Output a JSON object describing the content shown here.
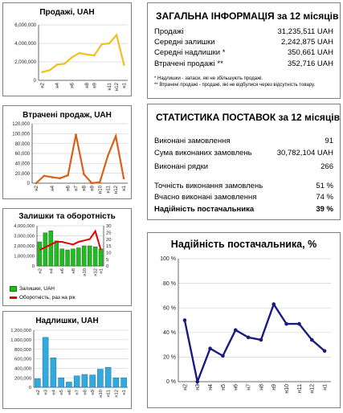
{
  "charts": {
    "sales": {
      "title": "Продажі, UAH"
    },
    "lost": {
      "title": "Втрачені продаж, UAH"
    },
    "stock": {
      "title": "Залишки та оборотність",
      "legend_stock": "Залишки, UAH",
      "legend_turnover": "Оборотність, раз на рік"
    },
    "surplus": {
      "title": "Надлишки, UAH"
    },
    "reliability": {
      "title": "Надійність постачальника, %"
    }
  },
  "info": {
    "title": "ЗАГАЛЬНА ІНФОРМАЦІЯ за 12 місяців",
    "rows": [
      {
        "label": "Продажі",
        "value": "31,235,511 UAH"
      },
      {
        "label": "Середні залишки",
        "value": "2,242,875 UAH"
      },
      {
        "label": "Середні надлишки *",
        "value": "350,661 UAH"
      },
      {
        "label": "Втрачені продажі **",
        "value": "352,716 UAH"
      }
    ],
    "note1": "* Надлишки - запаси, які не збільшують продажі.",
    "note2": "** Втрачені продажі - продажі, які не відбулися через відсутність товару."
  },
  "stats": {
    "title": "СТАТИСТИКА ПОСТАВОК за 12 місяців",
    "rows": [
      {
        "label": "Виконані замовлення",
        "value": "91"
      },
      {
        "label": "Сума виконаних замовлень",
        "value": "30,782,104 UAH"
      },
      {
        "label": "Виконані рядки",
        "value": "266"
      },
      {
        "label": "Точність виконання замовлень",
        "value": "51 %"
      },
      {
        "label": "Вчасно виконані замовлення",
        "value": "74 %"
      },
      {
        "label": "Надійність постачальника",
        "value": "39 %"
      }
    ]
  },
  "colors": {
    "sales": "#f0c020",
    "lost": "#d86018",
    "stock_bar": "#22bb22",
    "turnover": "#e00000",
    "surplus": "#33aadd",
    "reliability": "#1a1a80"
  },
  "chart_data": [
    {
      "type": "line",
      "title": "Продажі, UAH",
      "x": [
        "н2",
        "н3",
        "н4",
        "н5",
        "н6",
        "н7",
        "н8",
        "н9",
        "н10",
        "н11",
        "н12",
        "н1"
      ],
      "xlabels": [
        "н2",
        "",
        "н4",
        "",
        "н6",
        "",
        "н8",
        "н9",
        "",
        "н11",
        "н12",
        "н1"
      ],
      "values": [
        900000,
        1100000,
        1700000,
        1800000,
        2500000,
        2950000,
        2800000,
        2700000,
        3900000,
        4000000,
        4900000,
        1700000
      ],
      "yticks": [
        "0",
        "2,000,000",
        "4,000,000",
        "6,000,000"
      ],
      "ylim": [
        0,
        6000000
      ]
    },
    {
      "type": "line",
      "title": "Втрачені продаж, UAH",
      "x": [
        "н2",
        "н3",
        "н4",
        "н5",
        "н6",
        "н7",
        "н8",
        "н9",
        "н10",
        "н11",
        "н12",
        "н1"
      ],
      "xlabels": [
        "н2",
        "",
        "н4",
        "",
        "н6",
        "н7",
        "н8",
        "н9",
        "н10",
        "н11",
        "н12",
        "н1"
      ],
      "values": [
        0,
        15000,
        12000,
        10000,
        16000,
        98000,
        18000,
        0,
        2000,
        55000,
        95000,
        10000
      ],
      "yticks": [
        "0",
        "20,000",
        "40,000",
        "60,000",
        "80,000",
        "100,000",
        "120,000"
      ],
      "ylim": [
        0,
        120000
      ]
    },
    {
      "type": "bar",
      "title": "Залишки та оборотність",
      "x": [
        "н2",
        "н3",
        "н4",
        "н5",
        "н6",
        "н7",
        "н8",
        "н9",
        "н10",
        "н11",
        "н12",
        "н1"
      ],
      "xlabels": [
        "н2",
        "",
        "н4",
        "",
        "н6",
        "",
        "н8",
        "",
        "н10",
        "",
        "н12",
        "н1"
      ],
      "series": [
        {
          "name": "Залишки, UAH",
          "values": [
            2400000,
            3300000,
            3500000,
            2500000,
            1700000,
            1600000,
            1700000,
            1800000,
            2000000,
            2000000,
            1900000,
            1700000
          ]
        },
        {
          "name": "Оборотність, раз на рік",
          "values": [
            12,
            14,
            16,
            18,
            18,
            17,
            16,
            18,
            19,
            20,
            26,
            12
          ]
        }
      ],
      "yticks": [
        "0",
        "1,000,000",
        "2,000,000",
        "3,000,000",
        "4,000,000"
      ],
      "ylim": [
        0,
        4000000
      ],
      "y2ticks": [
        "0",
        "5",
        "10",
        "15",
        "20",
        "25",
        "30"
      ],
      "y2lim": [
        0,
        30
      ]
    },
    {
      "type": "bar",
      "title": "Надлишки, UAH",
      "x": [
        "н2",
        "н3",
        "н4",
        "н5",
        "н6",
        "н7",
        "н8",
        "н9",
        "н10",
        "н11",
        "н12",
        "н1"
      ],
      "xlabels": [
        "н2",
        "н3",
        "н4",
        "н5",
        "н6",
        "н7",
        "н8",
        "н9",
        "н10",
        "н11",
        "н12",
        "н1"
      ],
      "values": [
        180000,
        1050000,
        620000,
        200000,
        110000,
        240000,
        270000,
        260000,
        380000,
        420000,
        200000,
        200000
      ],
      "yticks": [
        "0",
        "200,000",
        "400,000",
        "600,000",
        "800,000",
        "1,000,000",
        "1,200,000"
      ],
      "ylim": [
        0,
        1200000
      ]
    },
    {
      "type": "line",
      "title": "Надійність постачальника, %",
      "x": [
        "н2",
        "н3",
        "н4",
        "н5",
        "н6",
        "н7",
        "н8",
        "н9",
        "н10",
        "н11",
        "н12",
        "н1"
      ],
      "xlabels": [
        "н2",
        "н3",
        "н4",
        "н5",
        "н6",
        "н7",
        "н8",
        "н9",
        "н10",
        "н11",
        "н12",
        "н1"
      ],
      "values": [
        50,
        0,
        27,
        21,
        42,
        36,
        34,
        63,
        47,
        47,
        34,
        25
      ],
      "yticks": [
        "0 %",
        "20 %",
        "40 %",
        "60 %",
        "80 %",
        "100 %"
      ],
      "ylim": [
        0,
        100
      ]
    }
  ]
}
